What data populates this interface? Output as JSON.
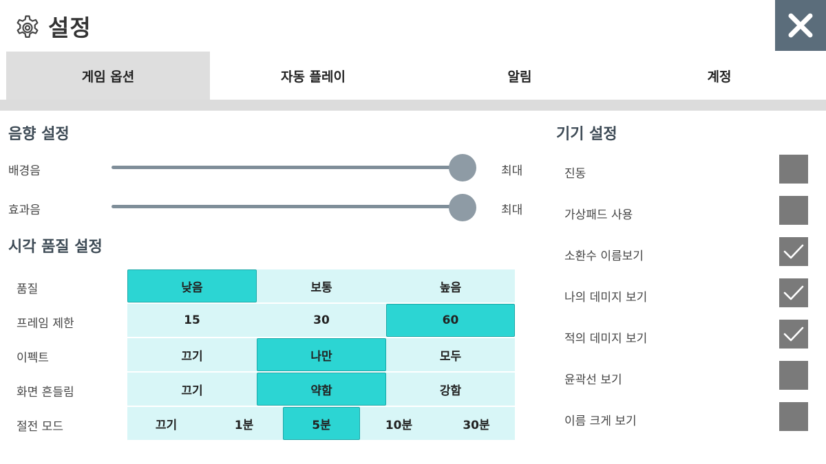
{
  "header": {
    "title": "설정",
    "gear_icon": "gear-icon",
    "close_icon": "close-icon"
  },
  "tabs": [
    {
      "label": "게임 옵션",
      "active": true
    },
    {
      "label": "자동 플레이",
      "active": false
    },
    {
      "label": "알림",
      "active": false
    },
    {
      "label": "계정",
      "active": false
    }
  ],
  "sound": {
    "title": "음향 설정",
    "bgm": {
      "label": "배경음",
      "value_label": "최대",
      "level": 1.0
    },
    "sfx": {
      "label": "효과음",
      "value_label": "최대",
      "level": 1.0
    }
  },
  "visual": {
    "title": "시각 품질 설정",
    "rows": [
      {
        "label": "품질",
        "options": [
          "낮음",
          "보통",
          "높음"
        ],
        "selected": 0
      },
      {
        "label": "프레임 제한",
        "options": [
          "15",
          "30",
          "60"
        ],
        "selected": 2
      },
      {
        "label": "이펙트",
        "options": [
          "끄기",
          "나만",
          "모두"
        ],
        "selected": 1
      },
      {
        "label": "화면 흔들림",
        "options": [
          "끄기",
          "약함",
          "강함"
        ],
        "selected": 1
      },
      {
        "label": "절전 모드",
        "options": [
          "끄기",
          "1분",
          "5분",
          "10분",
          "30분"
        ],
        "selected": 2
      }
    ]
  },
  "device": {
    "title": "기기 설정",
    "items": [
      {
        "label": "진동",
        "checked": false
      },
      {
        "label": "가상패드 사용",
        "checked": false
      },
      {
        "label": "소환수 이름보기",
        "checked": true
      },
      {
        "label": "나의 데미지 보기",
        "checked": true
      },
      {
        "label": "적의 데미지 보기",
        "checked": true
      },
      {
        "label": "윤곽선 보기",
        "checked": false
      },
      {
        "label": "이름 크게 보기",
        "checked": false
      }
    ]
  },
  "colors": {
    "selected_option": "#2cd5d3",
    "option_row_bg": "#d8f6f7",
    "checkbox": "#7a7a7a",
    "close_button": "#5b6d7b"
  }
}
